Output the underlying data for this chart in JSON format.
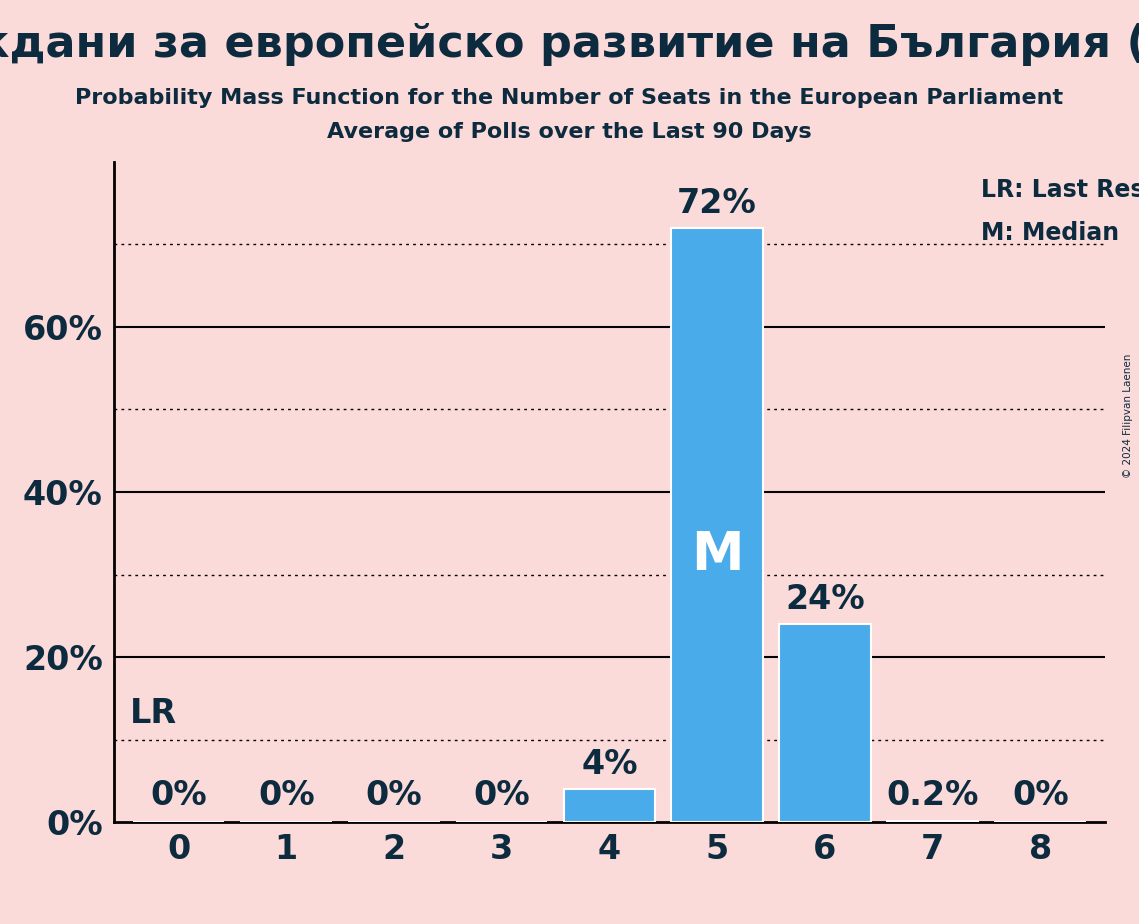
{
  "title": "Граждани за европейско развитие на България (EPP)",
  "subtitle1": "Probability Mass Function for the Number of Seats in the European Parliament",
  "subtitle2": "Average of Polls over the Last 90 Days",
  "categories": [
    0,
    1,
    2,
    3,
    4,
    5,
    6,
    7,
    8
  ],
  "values": [
    0.0,
    0.0,
    0.0,
    0.0,
    0.04,
    0.72,
    0.24,
    0.002,
    0.0
  ],
  "bar_color": "#4AABEB",
  "bar_edge_color": "#FFFFFF",
  "background_color": "#FBDADA",
  "title_color": "#0D2B3E",
  "text_color": "#0D2B3E",
  "median_seat": 5,
  "lr_value": 0.1,
  "ylim": [
    0,
    0.8
  ],
  "dotted_lines": [
    0.1,
    0.3,
    0.5,
    0.7
  ],
  "solid_lines": [
    0.2,
    0.4,
    0.6
  ],
  "copyright_text": "© 2024 Filipvan Laenen",
  "legend_lr": "LR: Last Result",
  "legend_m": "M: Median",
  "bar_labels": [
    "0%",
    "0%",
    "0%",
    "0%",
    "4%",
    "72%",
    "24%",
    "0.2%",
    "0%"
  ]
}
